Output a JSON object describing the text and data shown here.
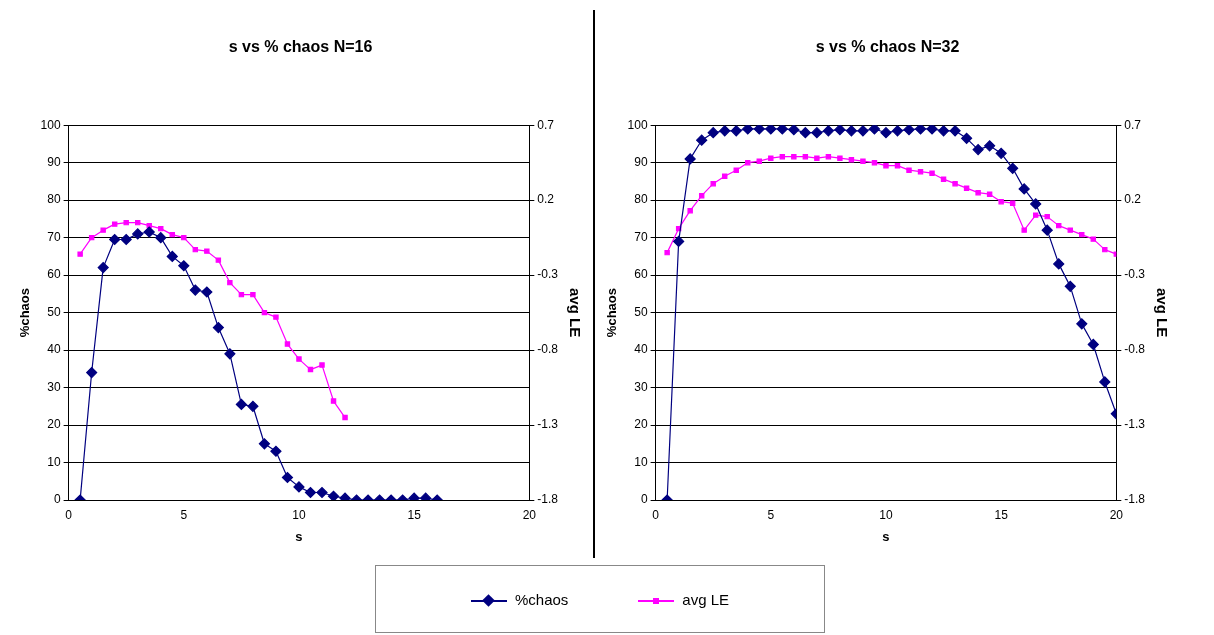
{
  "chart_data": [
    {
      "type": "line",
      "title": "s vs % chaos N=16",
      "xlabel": "s",
      "ylabel": "%chaos",
      "y2label": "avg LE",
      "xlim": [
        0,
        20
      ],
      "xticks": [
        0,
        5,
        10,
        15,
        20
      ],
      "ylim": [
        0,
        100
      ],
      "yticks": [
        0,
        10,
        20,
        30,
        40,
        50,
        60,
        70,
        80,
        90,
        100
      ],
      "y2lim": [
        -1.8,
        0.7
      ],
      "y2ticks": [
        -1.8,
        -1.3,
        -0.8,
        -0.3,
        0.2,
        0.7
      ],
      "grid": "y",
      "legend": "bottom",
      "x": [
        0.5,
        1,
        1.5,
        2,
        2.5,
        3,
        3.5,
        4,
        4.5,
        5,
        5.5,
        6,
        6.5,
        7,
        7.5,
        8,
        8.5,
        9,
        9.5,
        10,
        10.5,
        11,
        11.5,
        12,
        12.5,
        13,
        13.5,
        14,
        14.5,
        15,
        15.5,
        16
      ],
      "series": [
        {
          "name": "%chaos",
          "color": "#000080",
          "marker": "diamond",
          "values": [
            0,
            34,
            62,
            69.5,
            69.5,
            71,
            71.5,
            70,
            65,
            62.5,
            56,
            55.5,
            46,
            39,
            25.5,
            25,
            15,
            13,
            6,
            3.5,
            2,
            2,
            1,
            0.5,
            0,
            0,
            0,
            0,
            0,
            0.5,
            0.5,
            0
          ]
        },
        {
          "name": "avg LE",
          "color": "#ff00ff",
          "marker": "square",
          "axis": "y2",
          "x": [
            0.5,
            1,
            1.5,
            2,
            2.5,
            3,
            3.5,
            4,
            4.5,
            5,
            5.5,
            6,
            6.5,
            7,
            7.5,
            8,
            8.5,
            9,
            9.5,
            10,
            10.5,
            11,
            11.5,
            12
          ],
          "values": [
            -0.16,
            -0.05,
            0,
            0.04,
            0.05,
            0.05,
            0.03,
            0.01,
            -0.03,
            -0.05,
            -0.13,
            -0.14,
            -0.2,
            -0.35,
            -0.43,
            -0.43,
            -0.55,
            -0.58,
            -0.76,
            -0.86,
            -0.93,
            -0.9,
            -1.14,
            -1.25
          ]
        }
      ]
    },
    {
      "type": "line",
      "title": "s vs % chaos N=32",
      "xlabel": "s",
      "ylabel": "%chaos",
      "y2label": "avg LE",
      "xlim": [
        0,
        20
      ],
      "xticks": [
        0,
        5,
        10,
        15,
        20
      ],
      "ylim": [
        0,
        100
      ],
      "yticks": [
        0,
        10,
        20,
        30,
        40,
        50,
        60,
        70,
        80,
        90,
        100
      ],
      "y2lim": [
        -1.8,
        0.7
      ],
      "y2ticks": [
        -1.8,
        -1.3,
        -0.8,
        -0.3,
        0.2,
        0.7
      ],
      "grid": "y",
      "x": [
        0.5,
        1,
        1.5,
        2,
        2.5,
        3,
        3.5,
        4,
        4.5,
        5,
        5.5,
        6,
        6.5,
        7,
        7.5,
        8,
        8.5,
        9,
        9.5,
        10,
        10.5,
        11,
        11.5,
        12,
        12.5,
        13,
        13.5,
        14,
        14.5,
        15,
        15.5,
        16,
        16.5,
        17,
        17.5,
        18,
        18.5,
        19,
        19.5,
        20
      ],
      "series": [
        {
          "color": "#000080",
          "marker": "diamond",
          "values": [
            0,
            69,
            91,
            96,
            98,
            98.5,
            98.5,
            99,
            99,
            99,
            99,
            98.8,
            98,
            98,
            98.5,
            98.8,
            98.5,
            98.5,
            99,
            98,
            98.5,
            98.8,
            99,
            99,
            98.5,
            98.5,
            96.5,
            93.5,
            94.5,
            92.5,
            88.5,
            83,
            79,
            72,
            63,
            57,
            47,
            41.5,
            31.5,
            23
          ]
        },
        {
          "color": "#ff00ff",
          "marker": "square",
          "axis": "y2",
          "values": [
            -0.15,
            0.01,
            0.13,
            0.23,
            0.31,
            0.36,
            0.4,
            0.45,
            0.46,
            0.48,
            0.49,
            0.49,
            0.49,
            0.48,
            0.49,
            0.48,
            0.47,
            0.46,
            0.45,
            0.43,
            0.43,
            0.4,
            0.39,
            0.38,
            0.34,
            0.31,
            0.28,
            0.25,
            0.24,
            0.19,
            0.18,
            0,
            0.1,
            0.09,
            0.03,
            0,
            -0.03,
            -0.06,
            -0.13,
            -0.16
          ]
        }
      ]
    }
  ]
}
